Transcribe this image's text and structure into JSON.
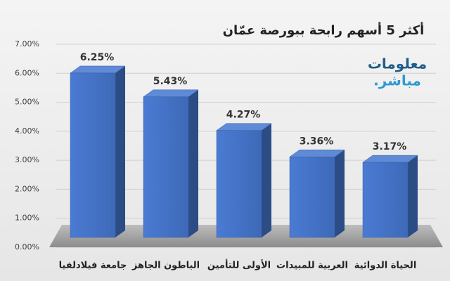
{
  "chart_data": {
    "type": "bar3d",
    "title": "أكثر 5 أسهم رابحة ببورصة عمّان",
    "logo": [
      "معلومات",
      "مباشر."
    ],
    "categories": [
      "جامعة فيلادلفيا",
      "الباطون الجاهز",
      "الأولى للتأمين",
      "العربية للمبيدات",
      "الحياة الدوائية"
    ],
    "values": [
      6.25,
      5.43,
      4.27,
      3.36,
      3.17
    ],
    "value_labels": [
      "6.25%",
      "5.43%",
      "4.27%",
      "3.36%",
      "3.17%"
    ],
    "color": "#4472c4",
    "ylim": [
      0,
      7
    ],
    "yticks": [
      {
        "value": 0,
        "label": "0.00%"
      },
      {
        "value": 1,
        "label": "1.00%"
      },
      {
        "value": 2,
        "label": "2.00%"
      },
      {
        "value": 3,
        "label": "3.00%"
      },
      {
        "value": 4,
        "label": "4.00%"
      },
      {
        "value": 5,
        "label": "5.00%"
      },
      {
        "value": 6,
        "label": "6.00%"
      },
      {
        "value": 7,
        "label": "7.00%"
      }
    ],
    "grid": true
  }
}
